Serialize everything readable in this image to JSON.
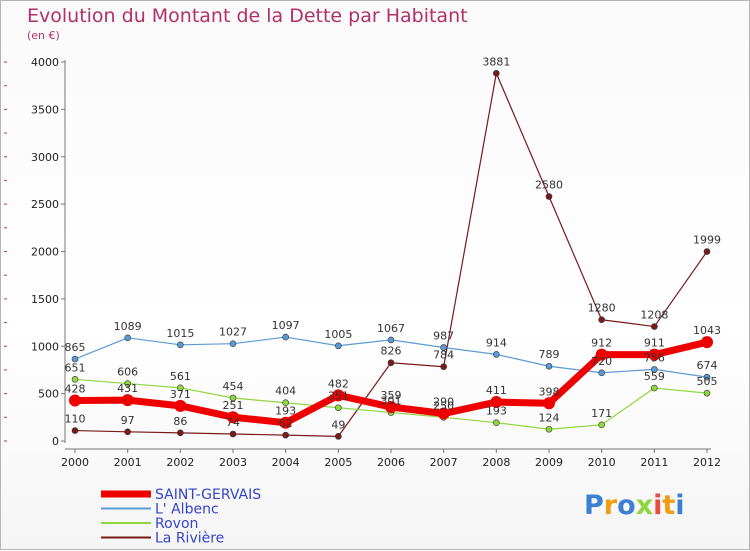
{
  "title": "Evolution du Montant de la Dette par Habitant",
  "subtitle": "(en €)",
  "logo": {
    "text": "Proxiti"
  },
  "colors": {
    "title": "#b0306a",
    "legend_text": "#3344cc",
    "axis": "#666666"
  },
  "chart_data": {
    "type": "line",
    "x": [
      "2000",
      "2001",
      "2002",
      "2003",
      "2004",
      "2005",
      "2006",
      "2007",
      "2008",
      "2009",
      "2010",
      "2011",
      "2012"
    ],
    "ylim": [
      0,
      4000
    ],
    "yticks": [
      0,
      500,
      1000,
      1500,
      2000,
      2500,
      3000,
      3500,
      4000
    ],
    "series": [
      {
        "name": "SAINT-GERVAIS",
        "color": "#ee0000",
        "values": [
          428,
          431,
          371,
          251,
          193,
          482,
          359,
          290,
          411,
          398,
          912,
          911,
          1043
        ]
      },
      {
        "name": "L' Albenc",
        "color": "#5b9bd5",
        "values": [
          865,
          1089,
          1015,
          1027,
          1097,
          1005,
          1067,
          987,
          914,
          789,
          720,
          756,
          674
        ]
      },
      {
        "name": "Rovon",
        "color": "#8fd63f",
        "values": [
          651,
          606,
          561,
          454,
          404,
          351,
          301,
          250,
          193,
          124,
          171,
          559,
          505
        ]
      },
      {
        "name": "La Rivière",
        "color": "#7a1a1a",
        "values": [
          110,
          97,
          86,
          74,
          62,
          49,
          826,
          784,
          3881,
          2580,
          1280,
          1208,
          1999
        ]
      }
    ]
  }
}
